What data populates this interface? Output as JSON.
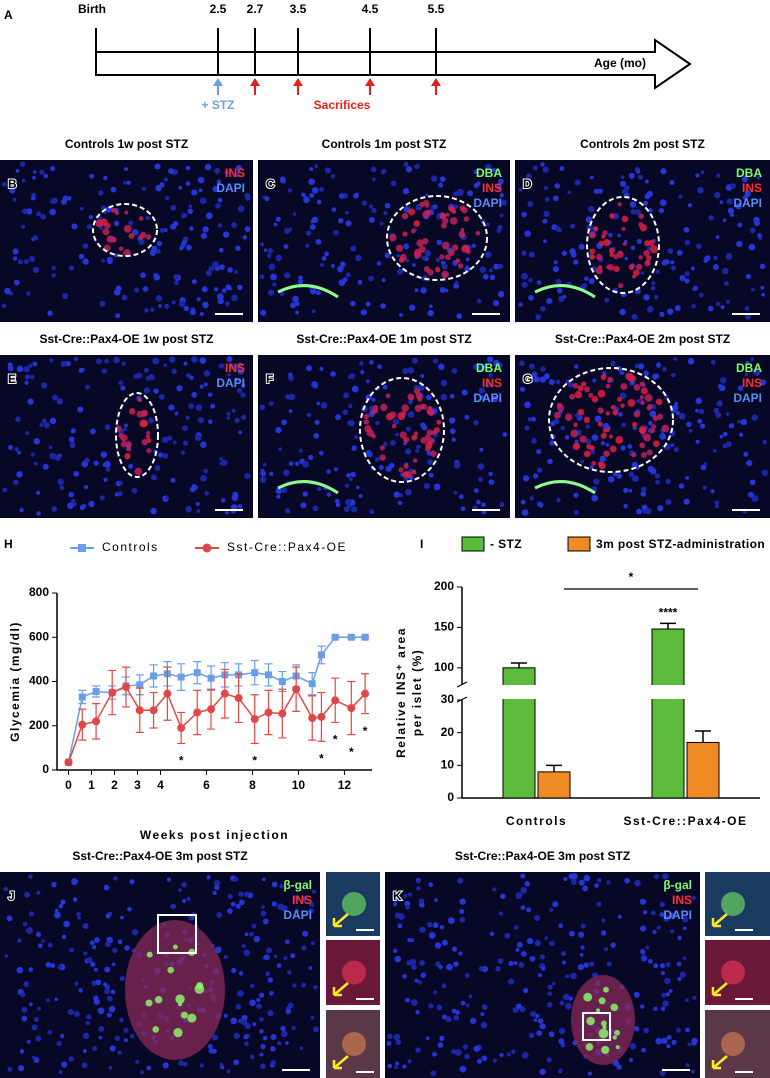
{
  "timeline": {
    "label": "A",
    "start": "Birth",
    "ticks": [
      "2.5",
      "2.7",
      "3.5",
      "4.5",
      "5.5"
    ],
    "axis_label": "Age (mo)",
    "stz": "+ STZ",
    "sacrifices": "Sacrifices",
    "stz_color": "#6f9fd8",
    "sacrifice_color": "#e0201e"
  },
  "images": [
    {
      "label": "B",
      "title": "Controls 1w post STZ",
      "channels": [
        {
          "text": "INS",
          "color": "#ff3030"
        },
        {
          "text": "DAPI",
          "color": "#5a8cff"
        }
      ]
    },
    {
      "label": "C",
      "title": "Controls 1m post STZ",
      "channels": [
        {
          "text": "DBA",
          "color": "#7dff6a"
        },
        {
          "text": "INS",
          "color": "#ff3030"
        },
        {
          "text": "DAPI",
          "color": "#5a8cff"
        }
      ]
    },
    {
      "label": "D",
      "title": "Controls 2m post STZ",
      "channels": [
        {
          "text": "DBA",
          "color": "#7dff6a"
        },
        {
          "text": "INS",
          "color": "#ff3030"
        },
        {
          "text": "DAPI",
          "color": "#5a8cff"
        }
      ]
    },
    {
      "label": "E",
      "title": "Sst-Cre::Pax4-OE 1w post STZ",
      "channels": [
        {
          "text": "INS",
          "color": "#ff3030"
        },
        {
          "text": "DAPI",
          "color": "#5a8cff"
        }
      ]
    },
    {
      "label": "F",
      "title": "Sst-Cre::Pax4-OE 1m post STZ",
      "channels": [
        {
          "text": "DBA",
          "color": "#7dff6a"
        },
        {
          "text": "INS",
          "color": "#ff3030"
        },
        {
          "text": "DAPI",
          "color": "#5a8cff"
        }
      ]
    },
    {
      "label": "G",
      "title": "Sst-Cre::Pax4-OE 2m post STZ",
      "channels": [
        {
          "text": "DBA",
          "color": "#7dff6a"
        },
        {
          "text": "INS",
          "color": "#ff3030"
        },
        {
          "text": "DAPI",
          "color": "#5a8cff"
        }
      ]
    },
    {
      "label": "J",
      "title": "Sst-Cre::Pax4-OE 3m post STZ",
      "channels": [
        {
          "text": "β-gal",
          "color": "#7dff6a"
        },
        {
          "text": "INS",
          "color": "#ff3030"
        },
        {
          "text": "DAPI",
          "color": "#5a8cff"
        }
      ]
    },
    {
      "label": "K",
      "title": "Sst-Cre::Pax4-OE 3m post STZ",
      "channels": [
        {
          "text": "β-gal",
          "color": "#7dff6a"
        },
        {
          "text": "INS",
          "color": "#ff3030"
        },
        {
          "text": "DAPI",
          "color": "#5a8cff"
        }
      ]
    }
  ],
  "chart_data": [
    {
      "type": "line",
      "panel_label": "H",
      "x_label": "Weeks post injection",
      "y_label": "Glycemia (mg/dl)",
      "x": [
        0,
        0.6,
        1.2,
        1.9,
        2.5,
        3.1,
        3.7,
        4.3,
        4.9,
        5.6,
        6.2,
        6.8,
        7.4,
        8.1,
        8.7,
        9.3,
        9.9,
        10.6,
        11,
        11.6,
        12.3,
        12.9
      ],
      "series": [
        {
          "name": "Controls",
          "color": "#6a9fe6",
          "marker": "square",
          "values": [
            35,
            330,
            355,
            350,
            380,
            385,
            425,
            435,
            420,
            440,
            415,
            430,
            430,
            440,
            430,
            400,
            425,
            390,
            520,
            600,
            600,
            600
          ],
          "errors": [
            5,
            30,
            25,
            30,
            40,
            45,
            50,
            55,
            60,
            50,
            55,
            55,
            50,
            55,
            50,
            45,
            50,
            50,
            40,
            5,
            5,
            5
          ]
        },
        {
          "name": "Sst-Cre::Pax4-OE",
          "color": "#e04848",
          "marker": "circle",
          "values": [
            35,
            205,
            220,
            350,
            375,
            270,
            270,
            345,
            190,
            260,
            275,
            345,
            325,
            230,
            260,
            255,
            365,
            235,
            240,
            315,
            280,
            345
          ],
          "errors": [
            5,
            70,
            80,
            100,
            90,
            100,
            80,
            120,
            70,
            100,
            90,
            110,
            110,
            110,
            100,
            110,
            100,
            100,
            110,
            100,
            120,
            90
          ]
        }
      ],
      "annotations": [
        {
          "text": "*",
          "x": 4.9
        },
        {
          "text": "*",
          "x": 8.1
        },
        {
          "text": "*",
          "x": 11
        },
        {
          "text": "*",
          "x": 11.6
        },
        {
          "text": "*",
          "x": 12.3
        },
        {
          "text": "*",
          "x": 12.9
        }
      ],
      "xlim": [
        -0.5,
        13.2
      ],
      "xticks": [
        0,
        1,
        2,
        3,
        4,
        6,
        8,
        10,
        12
      ],
      "ylim": [
        0,
        800
      ],
      "yticks": [
        0,
        200,
        400,
        600,
        800
      ]
    },
    {
      "type": "bar",
      "panel_label": "I",
      "y_label": [
        "Relative INS⁺ area",
        "per islet (%)"
      ],
      "categories": [
        "Controls",
        "Sst-Cre::Pax4-OE"
      ],
      "series": [
        {
          "name": "- STZ",
          "color": "#5dbb3c",
          "values": [
            100,
            148
          ],
          "errors": [
            6,
            7
          ]
        },
        {
          "name": "3m post STZ-administration",
          "color": "#f08a24",
          "values": [
            8,
            17
          ],
          "errors": [
            2,
            3.5
          ]
        }
      ],
      "annotations": [
        "****",
        "*"
      ],
      "ylim": [
        0,
        200
      ],
      "ybreak": [
        30,
        80
      ],
      "yticks": [
        0,
        10,
        20,
        30,
        100,
        150,
        200
      ]
    }
  ]
}
